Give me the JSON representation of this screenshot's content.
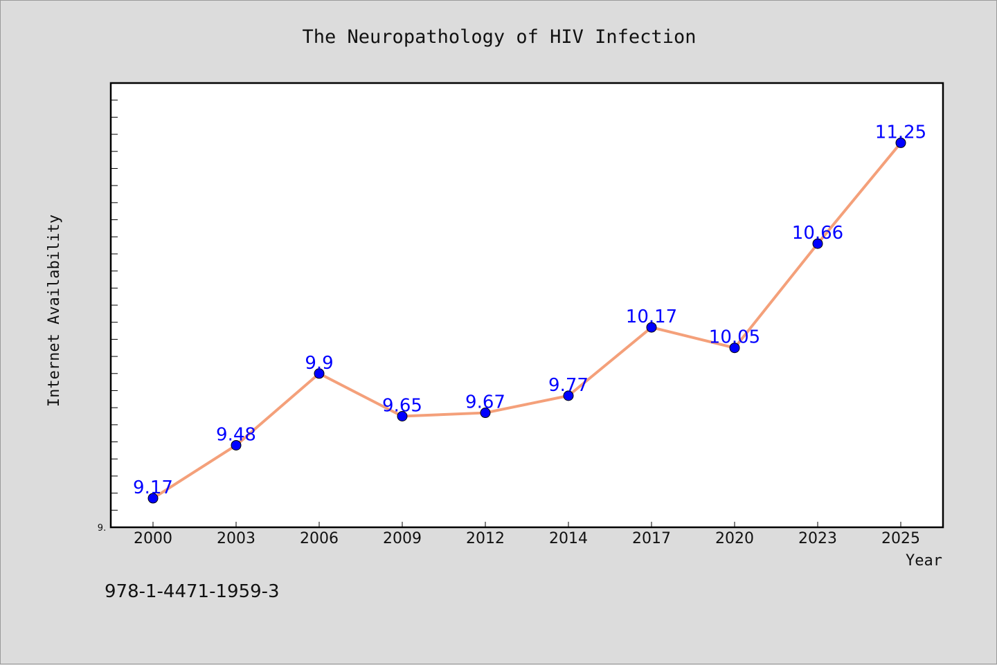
{
  "chart_data": {
    "type": "line",
    "title": "The Neuropathology of HIV Infection",
    "xlabel": "Year",
    "ylabel": "Internet Availability",
    "x": [
      "2000",
      "2003",
      "2006",
      "2009",
      "2012",
      "2014",
      "2017",
      "2020",
      "2023",
      "2025"
    ],
    "series": [
      {
        "values": [
          9.17,
          9.48,
          9.9,
          9.65,
          9.67,
          9.77,
          10.17,
          10.05,
          10.66,
          11.25
        ],
        "data_labels": [
          "9.17",
          "9.48",
          "9.9",
          "9.65",
          "9.67",
          "9.77",
          "10.17",
          "10.05",
          "10.66",
          "11.25"
        ],
        "line_color": "#f4a07a",
        "marker_color": "#0000ff"
      }
    ],
    "ylim": [
      9.0,
      11.6
    ],
    "ytick_label": "9.",
    "grid": false,
    "legend": "none"
  },
  "footer_text": "978-1-4471-1959-3",
  "colors": {
    "background": "#dcdcdc",
    "plot_area": "#ffffff",
    "axis": "#000000",
    "data_label": "#0000ff"
  }
}
